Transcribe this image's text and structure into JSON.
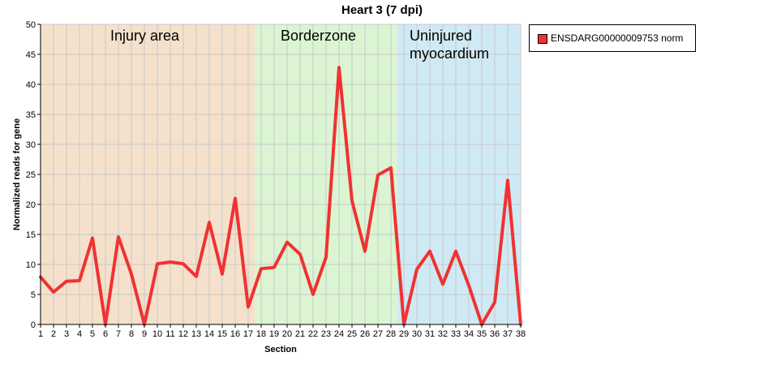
{
  "chart_data": {
    "type": "line",
    "title": "Heart 3 (7 dpi)",
    "xlabel": "Section",
    "ylabel": "Normalized reads for gene",
    "ylim": [
      0,
      50
    ],
    "yticks": [
      0,
      5,
      10,
      15,
      20,
      25,
      30,
      35,
      40,
      45,
      50
    ],
    "x": [
      1,
      2,
      3,
      4,
      5,
      6,
      7,
      8,
      9,
      10,
      11,
      12,
      13,
      14,
      15,
      16,
      17,
      18,
      19,
      20,
      21,
      22,
      23,
      24,
      25,
      26,
      27,
      28,
      29,
      30,
      31,
      32,
      33,
      34,
      35,
      36,
      37,
      38
    ],
    "grid": true,
    "legend_position": "right",
    "regions": [
      {
        "label": "Injury area",
        "x_start": 1,
        "x_end": 17.5,
        "color": "#f5e1cb"
      },
      {
        "label": "Borderzone",
        "x_start": 17.5,
        "x_end": 28.5,
        "color": "#dbf5d2"
      },
      {
        "label": "Uninjured myocardium",
        "x_start": 28.5,
        "x_end": 38,
        "color": "#cfeaf4"
      }
    ],
    "series": [
      {
        "name": "ENSDARG00000009753 norm",
        "color": "#f03232",
        "values": [
          7.9,
          5.4,
          7.2,
          7.3,
          14.4,
          0,
          14.6,
          8.4,
          0,
          10.1,
          10.4,
          10.1,
          8.0,
          17.0,
          8.4,
          21.0,
          2.9,
          9.3,
          9.5,
          13.7,
          11.7,
          5.0,
          11.2,
          42.8,
          20.6,
          12.2,
          24.9,
          26.1,
          0,
          9.2,
          12.2,
          6.7,
          12.2,
          6.5,
          0,
          3.7,
          24.0,
          0
        ]
      }
    ]
  }
}
